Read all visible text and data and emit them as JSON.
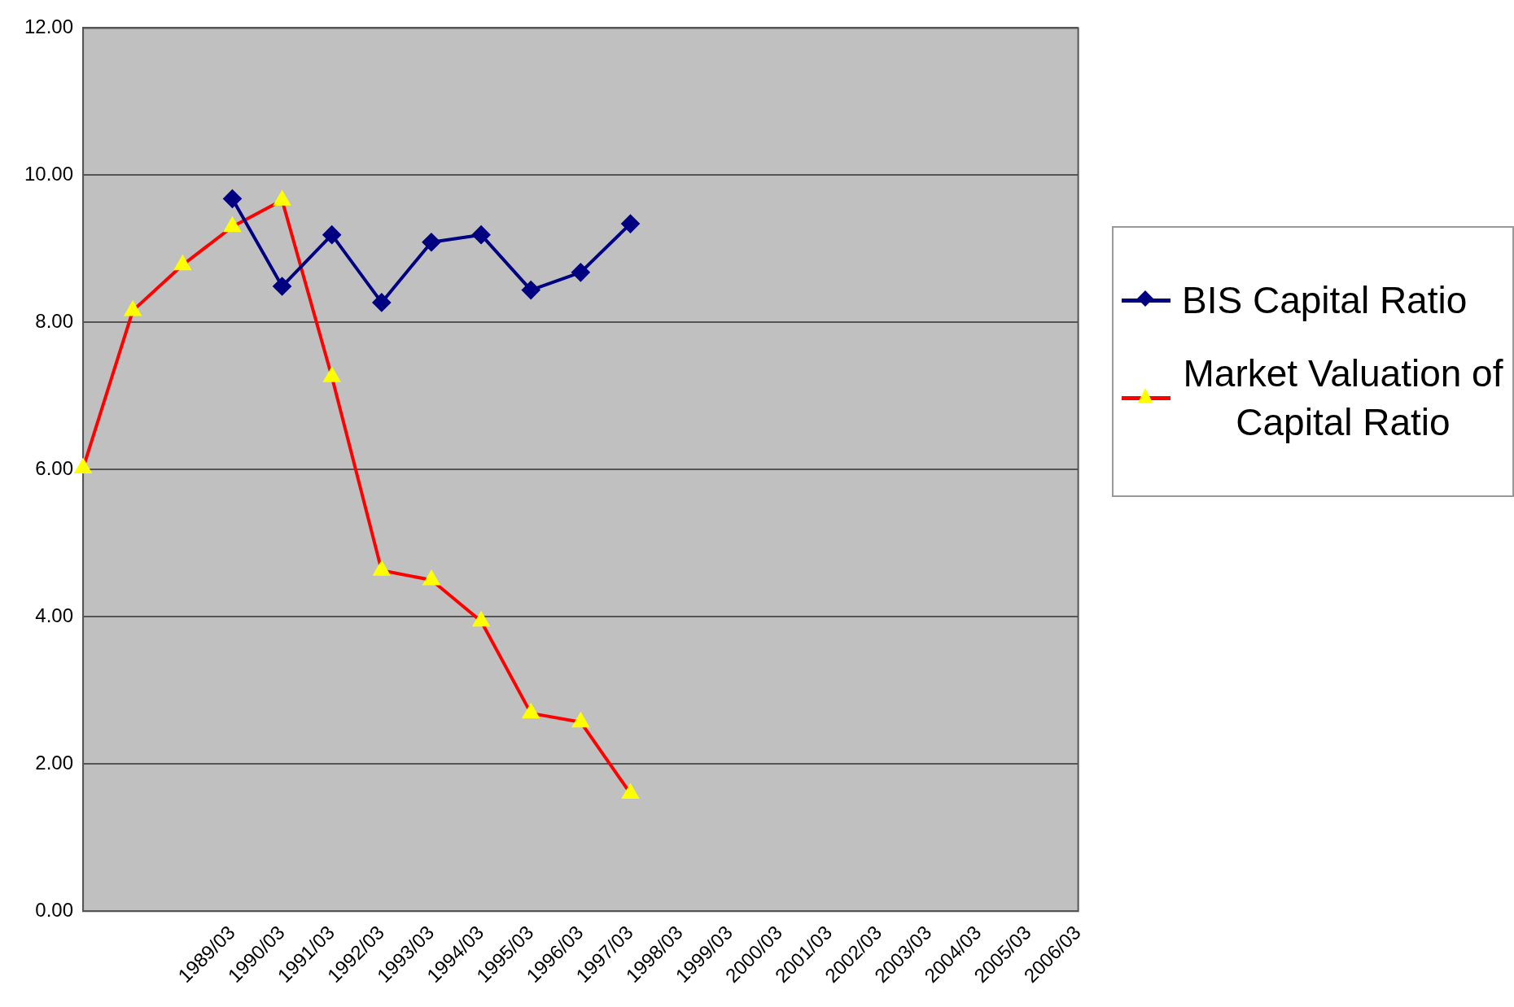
{
  "chart_data": {
    "type": "line",
    "categories": [
      null,
      null,
      null,
      "1989/03",
      "1990/03",
      "1991/03",
      "1992/03",
      "1993/03",
      "1994/03",
      "1995/03",
      "1996/03",
      "1997/03",
      "1998/03",
      "1999/03",
      "2000/03",
      "2001/03",
      "2002/03",
      "2003/03",
      "2004/03",
      "2005/03",
      "2006/03"
    ],
    "series": [
      {
        "name": "BIS Capital Ratio",
        "color": "#000080",
        "marker": "diamond",
        "values": [
          null,
          null,
          null,
          9.68,
          8.49,
          9.19,
          8.27,
          9.09,
          9.19,
          8.44,
          8.68,
          9.34,
          null,
          null,
          null,
          null,
          null,
          null,
          null,
          null,
          null
        ]
      },
      {
        "name": "Market Valuation of Capital Ratio",
        "color": "#ff0000",
        "marker": "triangle",
        "values": [
          6.02,
          8.16,
          8.78,
          9.3,
          9.66,
          7.26,
          4.63,
          4.5,
          3.94,
          2.69,
          2.57,
          1.6,
          null,
          null,
          null,
          null,
          null,
          null,
          null,
          null,
          null
        ]
      }
    ],
    "ylim": [
      0,
      12
    ],
    "yticks": [
      {
        "value": 0,
        "label": "0.00"
      },
      {
        "value": 2,
        "label": "2.00"
      },
      {
        "value": 4,
        "label": "4.00"
      },
      {
        "value": 6,
        "label": "6.00"
      },
      {
        "value": 8,
        "label": "8.00"
      },
      {
        "value": 10,
        "label": "10.00"
      },
      {
        "value": 12,
        "label": "12.00"
      }
    ],
    "grid": "y",
    "legend": "right"
  }
}
